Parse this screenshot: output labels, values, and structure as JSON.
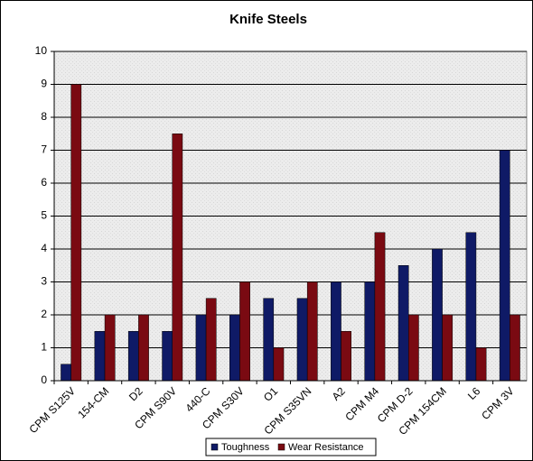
{
  "chart_data": {
    "type": "bar",
    "title": "Knife Steels",
    "categories": [
      "CPM S125V",
      "154-CM",
      "D2",
      "CPM S90V",
      "440-C",
      "CPM S30V",
      "O1",
      "CPM S35VN",
      "A2",
      "CPM M4",
      "CPM D-2",
      "CPM 154CM",
      "L6",
      "CPM 3V"
    ],
    "series": [
      {
        "name": "Toughness",
        "color": "#0f1a66",
        "values": [
          0.5,
          1.5,
          1.5,
          1.5,
          2,
          2,
          2.5,
          2.5,
          3,
          3,
          3.5,
          4,
          4.5,
          7
        ]
      },
      {
        "name": "Wear Resistance",
        "color": "#7a0a12",
        "values": [
          9,
          2,
          2,
          7.5,
          2.5,
          3,
          1,
          3,
          1.5,
          4.5,
          2,
          2,
          1,
          2
        ]
      }
    ],
    "ylim": [
      0,
      10
    ],
    "yticks": [
      0,
      1,
      2,
      3,
      4,
      5,
      6,
      7,
      8,
      9,
      10
    ],
    "grid": true,
    "legend": "bottom"
  }
}
